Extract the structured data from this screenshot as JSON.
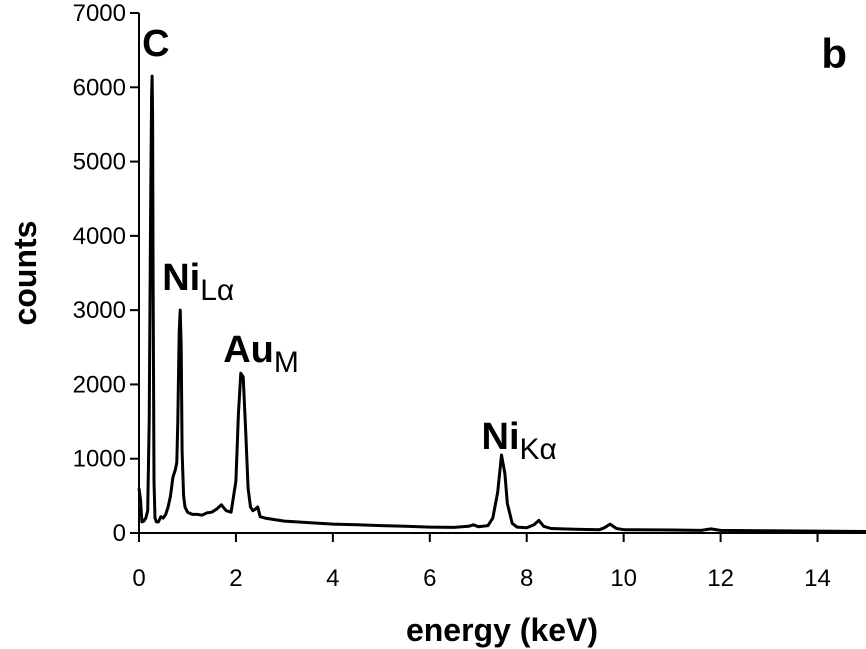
{
  "chart_data": {
    "type": "line",
    "panel_label": "b",
    "xlabel": "energy (keV)",
    "ylabel": "counts",
    "xlim": [
      0,
      15
    ],
    "ylim": [
      0,
      7000
    ],
    "x_ticks": [
      0,
      2,
      4,
      6,
      8,
      10,
      12,
      14
    ],
    "y_ticks": [
      0,
      1000,
      2000,
      3000,
      4000,
      5000,
      6000,
      7000
    ],
    "grid": false,
    "legend": "none",
    "line_color": "#000000",
    "series": [
      {
        "x": [
          0.0,
          0.03,
          0.06,
          0.1,
          0.14,
          0.18,
          0.21,
          0.24,
          0.26,
          0.27,
          0.28,
          0.29,
          0.31,
          0.33,
          0.36,
          0.4,
          0.45,
          0.5,
          0.55,
          0.6,
          0.65,
          0.7,
          0.75,
          0.78,
          0.8,
          0.83,
          0.85,
          0.87,
          0.89,
          0.92,
          0.95,
          1.0,
          1.1,
          1.2,
          1.3,
          1.4,
          1.5,
          1.6,
          1.7,
          1.8,
          1.9,
          2.0,
          2.05,
          2.1,
          2.15,
          2.2,
          2.25,
          2.3,
          2.35,
          2.4,
          2.45,
          2.5,
          2.6,
          2.8,
          3.0,
          3.5,
          4.0,
          4.5,
          5.0,
          5.5,
          6.0,
          6.5,
          6.8,
          6.9,
          7.0,
          7.2,
          7.3,
          7.4,
          7.48,
          7.55,
          7.6,
          7.7,
          7.8,
          8.0,
          8.15,
          8.25,
          8.35,
          8.5,
          9.0,
          9.5,
          9.6,
          9.72,
          9.85,
          10.0,
          11.0,
          11.6,
          11.8,
          12.0,
          13.0,
          14.0,
          15.0
        ],
        "y": [
          600,
          450,
          150,
          160,
          200,
          300,
          1500,
          4300,
          5900,
          6150,
          5600,
          3400,
          700,
          200,
          150,
          150,
          220,
          200,
          250,
          350,
          500,
          750,
          850,
          950,
          1500,
          2700,
          3000,
          2500,
          1100,
          500,
          350,
          280,
          250,
          250,
          240,
          270,
          280,
          320,
          380,
          300,
          280,
          700,
          1600,
          2150,
          2100,
          1400,
          600,
          350,
          300,
          320,
          350,
          220,
          200,
          180,
          160,
          140,
          120,
          110,
          100,
          90,
          80,
          75,
          90,
          110,
          85,
          100,
          200,
          550,
          1050,
          800,
          400,
          130,
          80,
          70,
          110,
          170,
          90,
          60,
          50,
          45,
          70,
          120,
          60,
          45,
          40,
          35,
          55,
          35,
          30,
          25,
          20
        ]
      }
    ],
    "annotations": [
      {
        "element": "C",
        "sub": "",
        "x": 0.27,
        "y": 6150
      },
      {
        "element": "Ni",
        "sub": "Lα",
        "x": 0.85,
        "y": 3000
      },
      {
        "element": "Au",
        "sub": "M",
        "x": 2.15,
        "y": 2150
      },
      {
        "element": "Ni",
        "sub": "Kα",
        "x": 7.48,
        "y": 1050
      }
    ]
  }
}
